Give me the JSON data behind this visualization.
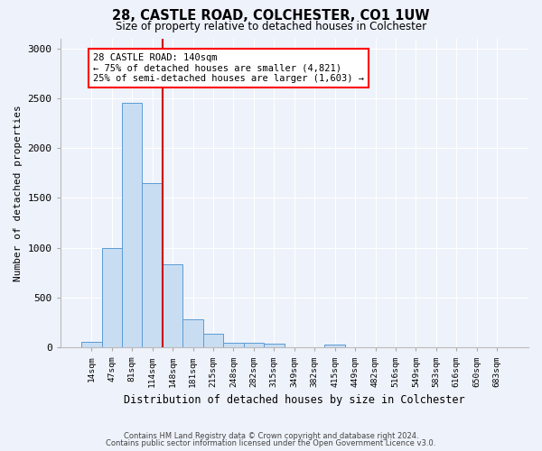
{
  "title1": "28, CASTLE ROAD, COLCHESTER, CO1 1UW",
  "title2": "Size of property relative to detached houses in Colchester",
  "xlabel": "Distribution of detached houses by size in Colchester",
  "ylabel": "Number of detached properties",
  "footnote1": "Contains HM Land Registry data © Crown copyright and database right 2024.",
  "footnote2": "Contains public sector information licensed under the Open Government Licence v3.0.",
  "bar_labels": [
    "14sqm",
    "47sqm",
    "81sqm",
    "114sqm",
    "148sqm",
    "181sqm",
    "215sqm",
    "248sqm",
    "282sqm",
    "315sqm",
    "349sqm",
    "382sqm",
    "415sqm",
    "449sqm",
    "482sqm",
    "516sqm",
    "549sqm",
    "583sqm",
    "616sqm",
    "650sqm",
    "683sqm"
  ],
  "bar_values": [
    60,
    1000,
    2450,
    1650,
    830,
    280,
    140,
    45,
    45,
    40,
    0,
    0,
    30,
    0,
    0,
    0,
    0,
    0,
    0,
    0,
    0
  ],
  "bar_color": "#c9ddf2",
  "bar_edge_color": "#5b9bd5",
  "ylim": [
    0,
    3100
  ],
  "yticks": [
    0,
    500,
    1000,
    1500,
    2000,
    2500,
    3000
  ],
  "vline_x_index": 3,
  "vline_color": "#cc0000",
  "annotation_line1": "28 CASTLE ROAD: 140sqm",
  "annotation_line2": "← 75% of detached houses are smaller (4,821)",
  "annotation_line3": "25% of semi-detached houses are larger (1,603) →",
  "bg_color": "#eef2fa"
}
